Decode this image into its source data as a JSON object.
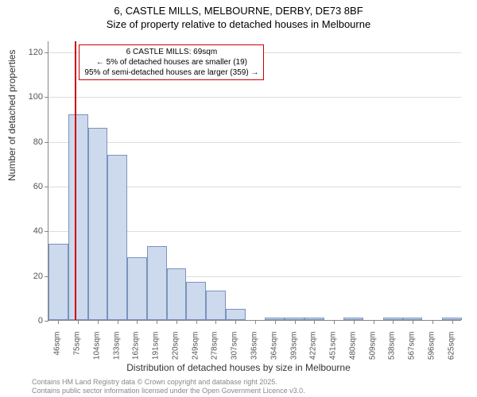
{
  "title": {
    "line1": "6, CASTLE MILLS, MELBOURNE, DERBY, DE73 8BF",
    "line2": "Size of property relative to detached houses in Melbourne"
  },
  "chart": {
    "type": "bar",
    "y_axis_label": "Number of detached properties",
    "x_axis_label": "Distribution of detached houses by size in Melbourne",
    "ylim": [
      0,
      125
    ],
    "yticks": [
      0,
      20,
      40,
      60,
      80,
      100,
      120
    ],
    "grid_color": "#dddddd",
    "background_color": "#ffffff",
    "bar_fill_color": "#cdd9ed",
    "bar_border_color": "#7a93bd",
    "axis_color": "#888888",
    "bar_width_ratio": 1.0,
    "categories": [
      "46sqm",
      "75sqm",
      "104sqm",
      "133sqm",
      "162sqm",
      "191sqm",
      "220sqm",
      "249sqm",
      "278sqm",
      "307sqm",
      "336sqm",
      "364sqm",
      "393sqm",
      "422sqm",
      "451sqm",
      "480sqm",
      "509sqm",
      "538sqm",
      "567sqm",
      "596sqm",
      "625sqm"
    ],
    "values": [
      34,
      92,
      86,
      74,
      28,
      33,
      23,
      17,
      13,
      5,
      0,
      1,
      1,
      1,
      0,
      1,
      0,
      1,
      1,
      0,
      1
    ],
    "tick_fontsize": 11,
    "label_fontsize": 12,
    "title_fontsize": 13
  },
  "marker": {
    "position_category_index": 0.85,
    "color": "#cc0000",
    "annotation": {
      "line1": "6 CASTLE MILLS: 69sqm",
      "line2": "← 5% of detached houses are smaller (19)",
      "line3": "95% of semi-detached houses are larger (359) →"
    }
  },
  "footer": {
    "line1": "Contains HM Land Registry data © Crown copyright and database right 2025.",
    "line2": "Contains public sector information licensed under the Open Government Licence v3.0."
  }
}
